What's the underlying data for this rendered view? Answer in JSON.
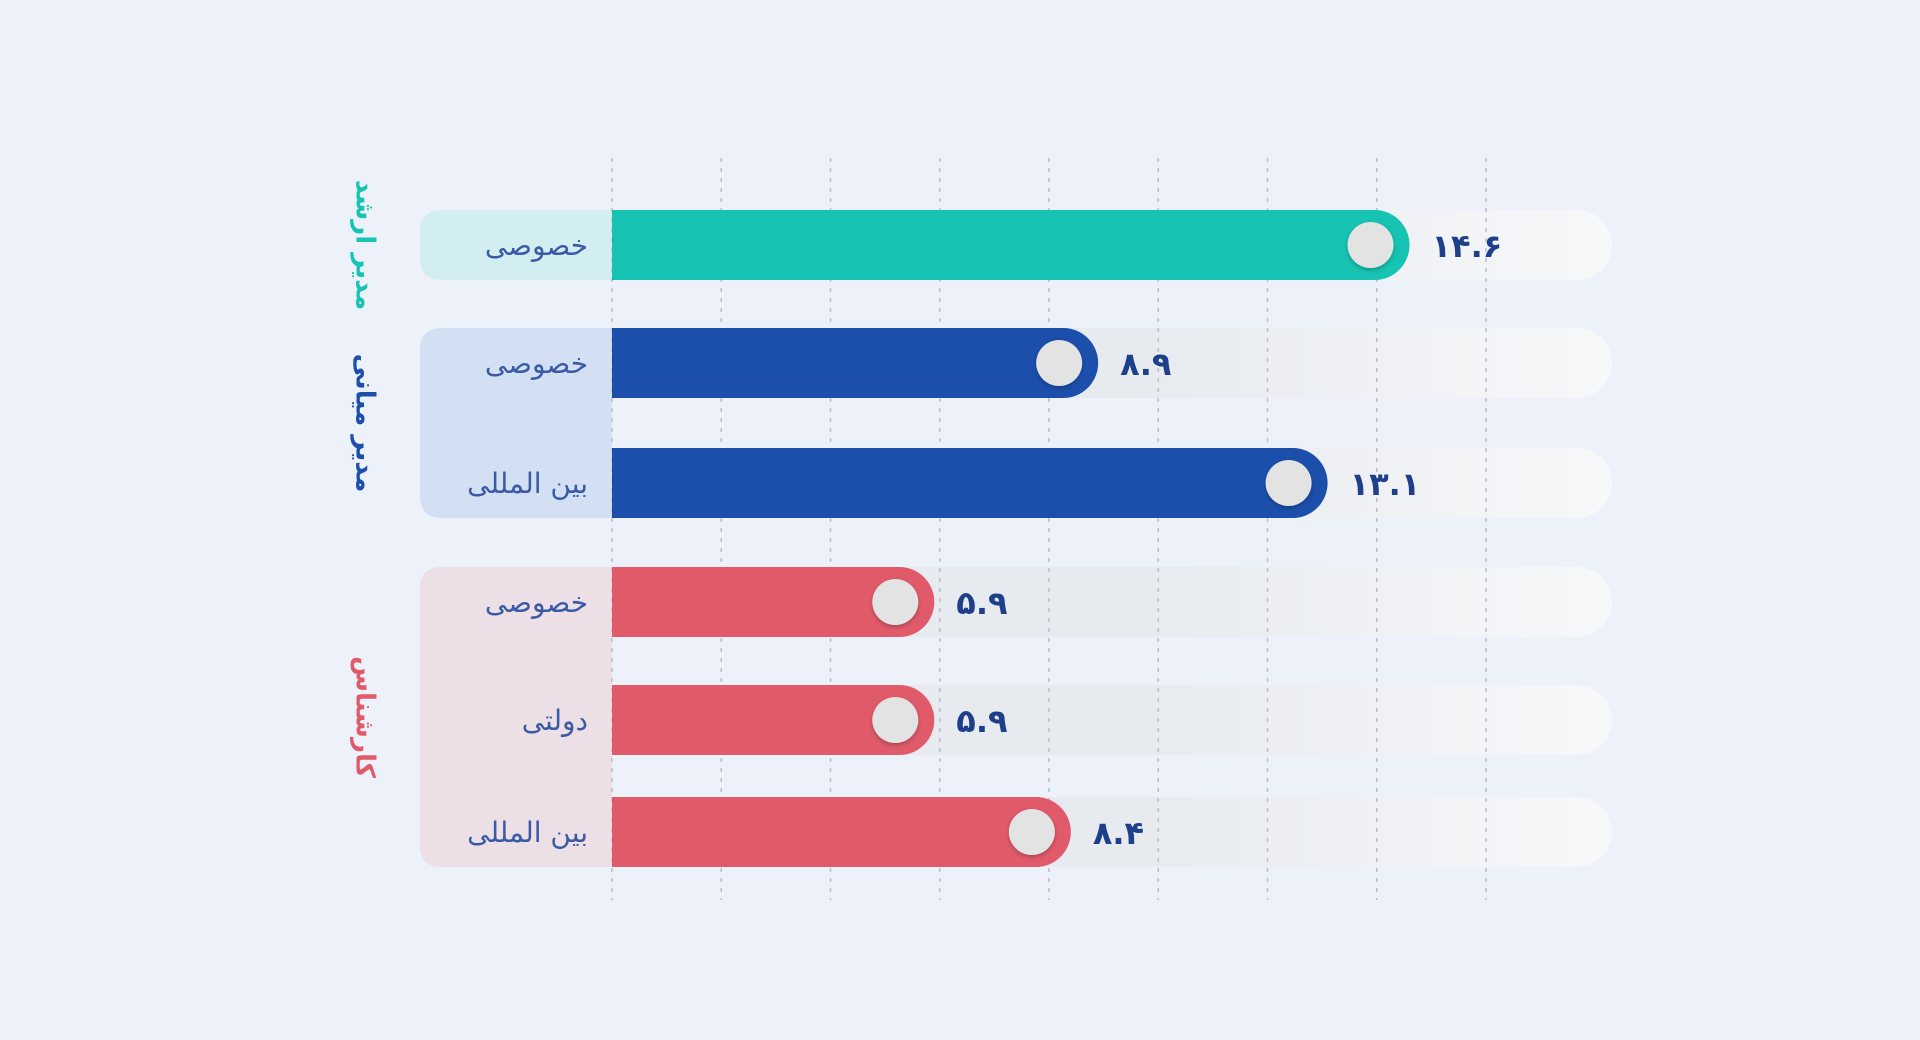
{
  "chart_data": {
    "type": "bar",
    "orientation": "horizontal",
    "xlim": [
      0,
      16
    ],
    "grid": true,
    "groups": [
      {
        "name": "مدیر ارشد",
        "color": "#17c3b2",
        "bg_color": "#d3eef0",
        "bars": [
          {
            "category": "خصوصی",
            "value": 14.6,
            "value_label": "۱۴.۶"
          }
        ]
      },
      {
        "name": "مدیر میانی",
        "color": "#1b4fab",
        "bg_color": "#d3dff2",
        "bars": [
          {
            "category": "خصوصی",
            "value": 8.9,
            "value_label": "۸.۹"
          },
          {
            "category": "بین المللی",
            "value": 13.1,
            "value_label": "۱۳.۱"
          }
        ]
      },
      {
        "name": "کارشناس",
        "color": "#e05a6a",
        "bg_color": "#ecdfe6",
        "bars": [
          {
            "category": "خصوصی",
            "value": 5.9,
            "value_label": "۵.۹"
          },
          {
            "category": "دولتی",
            "value": 5.9,
            "value_label": "۵.۹"
          },
          {
            "category": "بین المللی",
            "value": 8.4,
            "value_label": "۸.۴"
          }
        ]
      }
    ]
  },
  "colors": {
    "background": "#edf1f9",
    "track": "#e7eaee",
    "grid": "#b9bec7",
    "knob": "#e3e3e3",
    "category_text": "#3a5aa6",
    "value_text": "#1e3f8a"
  }
}
